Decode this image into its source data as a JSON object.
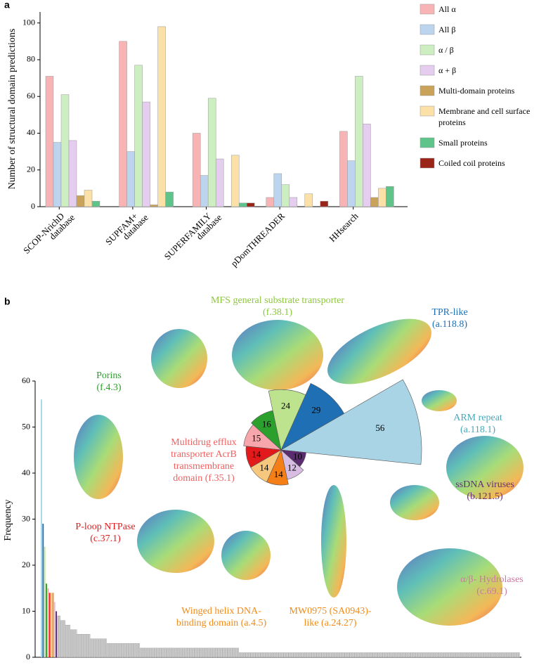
{
  "chart_data": [
    {
      "type": "grouped_bar",
      "panel_label": "a",
      "ylabel": "Number of structural domain predictions",
      "categories": [
        [
          "SCOP-NrichD",
          "database"
        ],
        [
          "SUPFAM+",
          "database"
        ],
        [
          "SUPERFAMILY",
          "database"
        ],
        [
          "pDomTHREADER"
        ],
        [
          "HHsearch"
        ]
      ],
      "series": [
        {
          "name": "All α",
          "color": "#f8b4b4",
          "values": [
            71,
            90,
            40,
            5,
            41
          ]
        },
        {
          "name": "All β",
          "color": "#bcd4ee",
          "values": [
            35,
            30,
            17,
            18,
            25
          ]
        },
        {
          "name": "α / β",
          "color": "#cdeec0",
          "values": [
            61,
            77,
            59,
            12,
            71
          ]
        },
        {
          "name": "α + β",
          "color": "#e4cdee",
          "values": [
            36,
            57,
            26,
            5,
            45
          ]
        },
        {
          "name": "Multi-domain proteins",
          "color": "#c9a35a",
          "values": [
            6,
            1,
            0,
            0,
            5
          ]
        },
        {
          "name": "Membrane and cell surface proteins",
          "color": "#fbe0a8",
          "values": [
            9,
            98,
            28,
            7,
            10
          ]
        },
        {
          "name": "Small proteins",
          "color": "#5ec48a",
          "values": [
            3,
            8,
            2,
            0,
            11
          ]
        },
        {
          "name": "Coiled coil proteins",
          "color": "#9b2418",
          "values": [
            0,
            0,
            2,
            3,
            0
          ]
        }
      ],
      "ylim": [
        0,
        106
      ],
      "yticks": [
        0,
        20,
        40,
        60,
        80,
        100
      ]
    },
    {
      "type": "bar",
      "panel_label": "b",
      "ylabel": "Frequency",
      "values": [
        56,
        29,
        24,
        16,
        15,
        14,
        14,
        14,
        12,
        10,
        9,
        9,
        8,
        8,
        8,
        7,
        7,
        7,
        6,
        6,
        6,
        6,
        5,
        5,
        5,
        5,
        5,
        5,
        5,
        5,
        4,
        4,
        4,
        4,
        4,
        4,
        4,
        4,
        4,
        4,
        3,
        3,
        3,
        3,
        3,
        3,
        3,
        3,
        3,
        3,
        3,
        3,
        3,
        3,
        3,
        3,
        3,
        3,
        3,
        3,
        2,
        2,
        2,
        2,
        2,
        2,
        2,
        2,
        2,
        2,
        2,
        2,
        2,
        2,
        2,
        2,
        2,
        2,
        2,
        2,
        2,
        2,
        2,
        2,
        2,
        2,
        2,
        2,
        2,
        2,
        2,
        2,
        2,
        2,
        2,
        2,
        2,
        2,
        2,
        2,
        2,
        2,
        2,
        2,
        2,
        2,
        2,
        2,
        2,
        2,
        2,
        2,
        2,
        2,
        2,
        2,
        2,
        2,
        2,
        2,
        1,
        1,
        1,
        1,
        1,
        1,
        1,
        1,
        1,
        1,
        1,
        1,
        1,
        1,
        1,
        1,
        1,
        1,
        1,
        1,
        1,
        1,
        1,
        1,
        1,
        1,
        1,
        1,
        1,
        1,
        1,
        1,
        1,
        1,
        1,
        1,
        1,
        1,
        1,
        1,
        1,
        1,
        1,
        1,
        1,
        1,
        1,
        1,
        1,
        1,
        1,
        1,
        1,
        1,
        1,
        1,
        1,
        1,
        1,
        1,
        1,
        1,
        1,
        1,
        1,
        1,
        1,
        1,
        1,
        1,
        1,
        1,
        1,
        1,
        1,
        1,
        1,
        1,
        1,
        1,
        1,
        1,
        1,
        1,
        1,
        1,
        1,
        1,
        1,
        1,
        1,
        1,
        1,
        1,
        1,
        1,
        1,
        1,
        1,
        1,
        1,
        1,
        1,
        1,
        1,
        1,
        1,
        1,
        1,
        1,
        1,
        1,
        1,
        1,
        1,
        1,
        1,
        1,
        1,
        1,
        1,
        1,
        1,
        1,
        1,
        1,
        1,
        1,
        1,
        1,
        1,
        1,
        1,
        1,
        1,
        1,
        1,
        1,
        1,
        1,
        1,
        1,
        1,
        1,
        1,
        1,
        1,
        1,
        1,
        1,
        1,
        1,
        1,
        1,
        1,
        1,
        1,
        1,
        1,
        1,
        1,
        1,
        1,
        1,
        1,
        1,
        1,
        1,
        1,
        1
      ],
      "colors": [
        "#a9d4e6",
        "#1f6fb5",
        "#bde38f",
        "#2ca02c",
        "#f7a6ab",
        "#e31a1c",
        "#f6c77c",
        "#f57f17",
        "#d8bde3",
        "#5b2c6f"
      ],
      "color": "#d4d4d4",
      "ylim": [
        0,
        60
      ],
      "yticks": [
        0,
        10,
        20,
        30,
        40,
        50,
        60
      ],
      "annotations": [
        {
          "lines": [
            "MFS general substrate transporter",
            "(f.38.1)"
          ],
          "color": "#8dc63f"
        },
        {
          "lines": [
            "TPR-like",
            "(a.118.8)"
          ],
          "color": "#1f6fb5"
        },
        {
          "lines": [
            "Porins",
            "(f.4.3)"
          ],
          "color": "#2ca02c"
        },
        {
          "lines": [
            "ARM repeat",
            "(a.118.1)"
          ],
          "color": "#4aa8b8"
        },
        {
          "lines": [
            "Multidrug efflux",
            "transporter AcrB",
            "transmembrane",
            "domain (f.35.1)"
          ],
          "color": "#f06060"
        },
        {
          "lines": [
            "ssDNA viruses",
            "(b.121.5)"
          ],
          "color": "#6a2c7a"
        },
        {
          "lines": [
            "P-loop NTPase",
            "(c.37.1)"
          ],
          "color": "#e31a1c"
        },
        {
          "lines": [
            "α/β- Hydrolases",
            "(c.69.1)"
          ],
          "color": "#c97aa0"
        },
        {
          "lines": [
            "Winged helix DNA-",
            "binding domain (a.4.5)"
          ],
          "color": "#f08c1a"
        },
        {
          "lines": [
            "MW0975 (SA0943)-",
            "like (a.24.27)"
          ],
          "color": "#f08c1a"
        }
      ]
    }
  ]
}
